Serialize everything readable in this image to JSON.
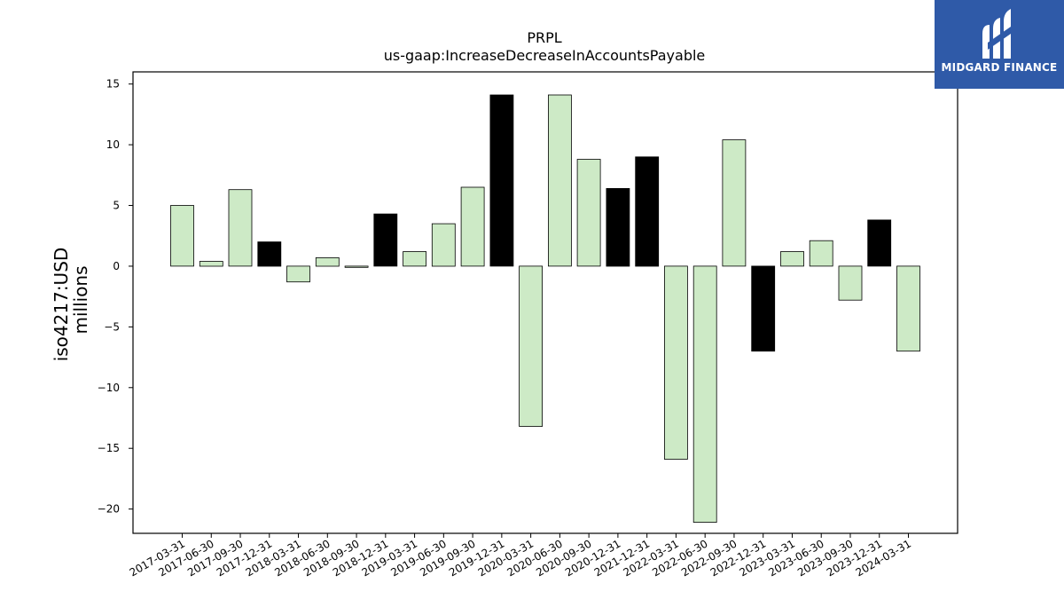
{
  "chart_data": {
    "type": "bar",
    "title": "PRPL",
    "subtitle": "us-gaap:IncreaseDecreaseInAccountsPayable",
    "ylabel": "iso4217:USD",
    "ylabel_sub": "millions",
    "xlabel": "",
    "ylim": [
      -22,
      16
    ],
    "yticks": [
      15,
      10,
      5,
      0,
      -5,
      -10,
      -15,
      -20
    ],
    "ytick_labels": [
      "15",
      "10",
      "5",
      "0",
      "−5",
      "−10",
      "−15",
      "−20"
    ],
    "categories": [
      "2017-03-31",
      "2017-06-30",
      "2017-09-30",
      "2017-12-31",
      "2018-03-31",
      "2018-06-30",
      "2018-09-30",
      "2018-12-31",
      "2019-03-31",
      "2019-06-30",
      "2019-09-30",
      "2019-12-31",
      "2020-03-31",
      "2020-06-30",
      "2020-09-30",
      "2020-12-31",
      "2021-12-31",
      "2022-03-31",
      "2022-06-30",
      "2022-09-30",
      "2022-12-31",
      "2023-03-31",
      "2023-06-30",
      "2023-09-30",
      "2023-12-31",
      "2024-03-31"
    ],
    "values": [
      5.0,
      0.4,
      6.3,
      2.0,
      -1.3,
      0.7,
      -0.1,
      4.3,
      1.2,
      3.5,
      6.5,
      14.1,
      -13.2,
      14.1,
      8.8,
      6.4,
      9.0,
      -15.9,
      -21.1,
      10.4,
      -7.0,
      1.2,
      2.1,
      -2.8,
      3.8,
      -7.0
    ],
    "bar_colors": [
      "#cdeac6",
      "#cdeac6",
      "#cdeac6",
      "#000000",
      "#cdeac6",
      "#cdeac6",
      "#cdeac6",
      "#000000",
      "#cdeac6",
      "#cdeac6",
      "#cdeac6",
      "#000000",
      "#cdeac6",
      "#cdeac6",
      "#cdeac6",
      "#000000",
      "#000000",
      "#cdeac6",
      "#cdeac6",
      "#cdeac6",
      "#000000",
      "#cdeac6",
      "#cdeac6",
      "#cdeac6",
      "#000000",
      "#cdeac6"
    ],
    "grid": false,
    "legend": "none"
  },
  "logo": {
    "text": "MIDGARD FINANCE",
    "background": "#2f5aa8"
  }
}
